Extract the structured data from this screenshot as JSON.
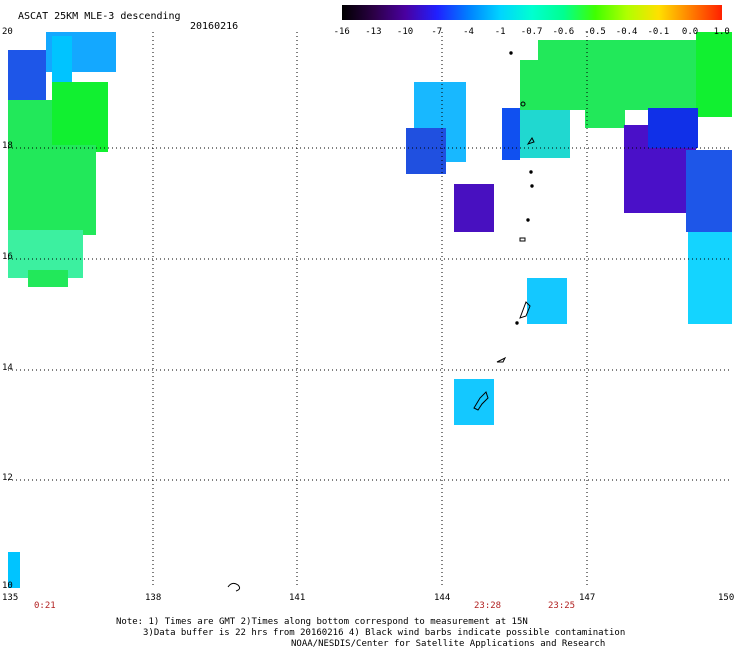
{
  "header": {
    "title": "ASCAT 25KM MLE-3 descending",
    "date": "20160216"
  },
  "colorbar": {
    "labels": [
      "-16",
      "-13",
      "-10",
      "-7",
      "-4",
      "-1",
      "-0.7",
      "-0.6",
      "-0.5",
      "-0.4",
      "-0.1",
      "0.0",
      "1.0"
    ],
    "colors": [
      "#000000",
      "#2b0045",
      "#4a00a0",
      "#2020ff",
      "#0080ff",
      "#00d4ff",
      "#00ffd0",
      "#00ff90",
      "#40ff00",
      "#b0ff00",
      "#ffe000",
      "#ff8000",
      "#ff2000"
    ]
  },
  "axes": {
    "x_ticks": [
      "135",
      "138",
      "141",
      "144",
      "147",
      "150"
    ],
    "y_ticks": [
      "20",
      "18",
      "16",
      "14",
      "12",
      "10"
    ]
  },
  "pass_times": [
    "0:21",
    "23:28",
    "23:25"
  ],
  "notes": [
    "Note: 1) Times are GMT 2)Times along bottom correspond to measurement at 15N",
    "3)Data buffer is 22 hrs from 20160216 4) Black wind barbs indicate possible contamination",
    "NOAA/NESDIS/Center for Satellite Applications and Research"
  ]
}
